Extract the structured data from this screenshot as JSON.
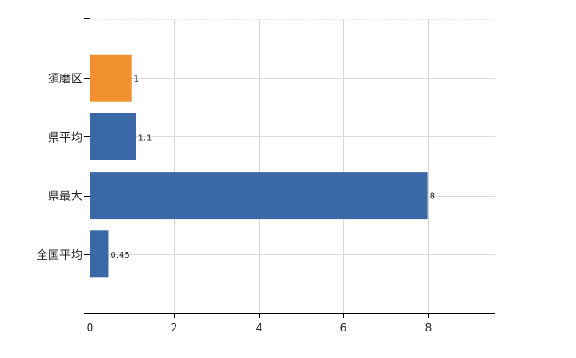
{
  "chart_data": {
    "type": "bar",
    "orientation": "horizontal",
    "categories": [
      "須磨区",
      "県平均",
      "県最大",
      "全国平均"
    ],
    "values": [
      1,
      1.1,
      8,
      0.45
    ],
    "data_labels": [
      "1",
      "1.1",
      "8",
      "0.45"
    ],
    "bar_colors": [
      "#f0902e",
      "#3b69a8",
      "#3b69a8",
      "#3b69a8"
    ],
    "xlim": [
      0,
      9.6
    ],
    "x_ticks": [
      0,
      2,
      4,
      6,
      8
    ],
    "x_tick_labels": [
      "0",
      "2",
      "4",
      "6",
      "8"
    ],
    "grid": true,
    "legend": "none",
    "title": "",
    "xlabel": "",
    "ylabel": ""
  }
}
